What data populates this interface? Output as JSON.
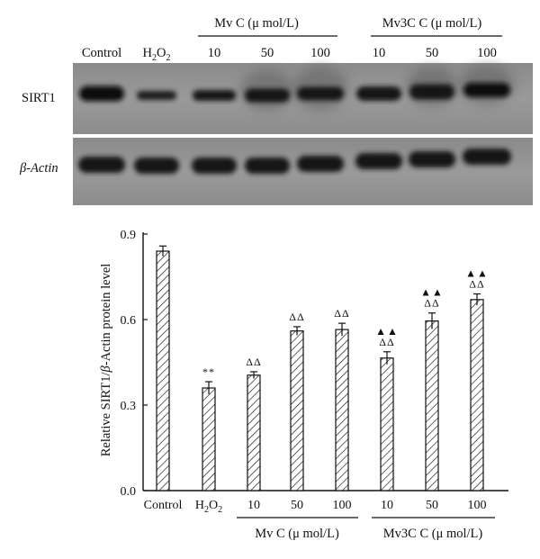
{
  "blot": {
    "lane_labels": [
      "Control",
      "H2O2",
      "10",
      "50",
      "100",
      "10",
      "50",
      "100"
    ],
    "group_headers": [
      "Mv C (μ mol/L)",
      "Mv3C C (μ mol/L)"
    ],
    "row_labels": [
      "SIRT1",
      "β-Actin"
    ]
  },
  "chart_data": {
    "type": "bar",
    "categories": [
      "Control",
      "H2O2",
      "10",
      "50",
      "100",
      "10",
      "50",
      "100"
    ],
    "values": [
      0.84,
      0.36,
      0.405,
      0.56,
      0.565,
      0.465,
      0.595,
      0.67
    ],
    "errors": [
      0.018,
      0.022,
      0.012,
      0.015,
      0.022,
      0.022,
      0.028,
      0.02
    ],
    "significance": [
      "",
      "**",
      "ΔΔ",
      "ΔΔ",
      "ΔΔ",
      "▲▲ ΔΔ",
      "▲▲ ΔΔ",
      "▲▲ ΔΔ"
    ],
    "ylabel": "Relative SIRT1/β-Actin protein level",
    "ylim": [
      0,
      0.9
    ],
    "yticks": [
      "0.0",
      "0.3",
      "0.6",
      "0.9"
    ],
    "group_labels": [
      "Mv C (μ mol/L)",
      "Mv3C C (μ mol/L)"
    ],
    "bar_pattern": "diagonal hatch",
    "grid": false
  }
}
